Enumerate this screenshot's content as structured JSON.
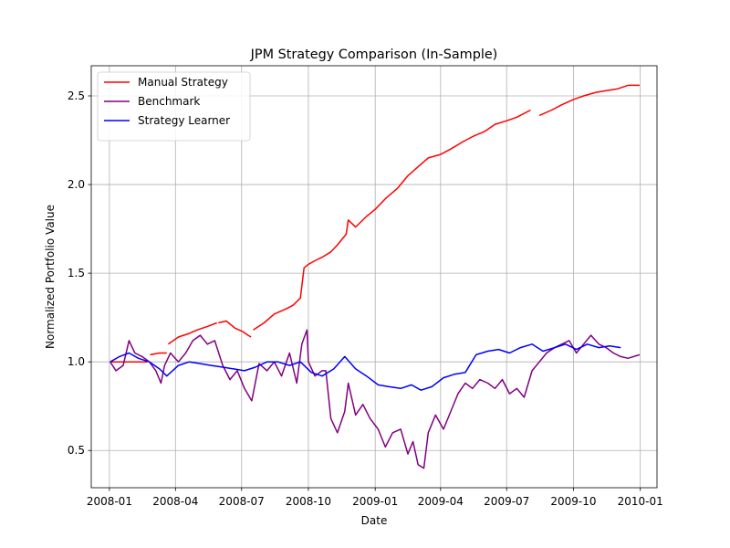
{
  "chart_data": {
    "type": "line",
    "title": "JPM Strategy Comparison (In-Sample)",
    "xlabel": "Date",
    "ylabel": "Normalized Portfolio Value",
    "xlim": [
      "2007-12-07",
      "2010-01-24"
    ],
    "ylim": [
      0.29,
      2.67
    ],
    "x_ticks": [
      "2008-01",
      "2008-04",
      "2008-07",
      "2008-10",
      "2009-01",
      "2009-04",
      "2009-07",
      "2009-10",
      "2010-01"
    ],
    "x_tick_dates": [
      "2008-01-01",
      "2008-04-01",
      "2008-07-01",
      "2008-10-01",
      "2009-01-01",
      "2009-04-01",
      "2009-07-01",
      "2009-10-01",
      "2010-01-01"
    ],
    "y_ticks": [
      0.5,
      1.0,
      1.5,
      2.0,
      2.5
    ],
    "grid": true,
    "legend_position": "top-left",
    "series": [
      {
        "name": "Manual Strategy",
        "color": "#ff0000",
        "segments": [
          {
            "x": [
              "2008-01-02",
              "2008-01-20",
              "2008-02-05",
              "2008-02-22"
            ],
            "y": [
              1.0,
              1.0,
              1.0,
              1.0
            ]
          },
          {
            "x": [
              "2008-02-26",
              "2008-03-10",
              "2008-03-20"
            ],
            "y": [
              1.04,
              1.05,
              1.05
            ]
          },
          {
            "x": [
              "2008-03-22",
              "2008-04-05",
              "2008-04-20",
              "2008-05-01",
              "2008-05-15",
              "2008-05-28"
            ],
            "y": [
              1.1,
              1.14,
              1.16,
              1.18,
              1.2,
              1.22
            ]
          },
          {
            "x": [
              "2008-05-30",
              "2008-06-10",
              "2008-06-22",
              "2008-07-03",
              "2008-07-10",
              "2008-07-14"
            ],
            "y": [
              1.22,
              1.23,
              1.19,
              1.17,
              1.15,
              1.14
            ]
          },
          {
            "x": [
              "2008-07-17",
              "2008-08-01",
              "2008-08-15",
              "2008-09-01",
              "2008-09-10",
              "2008-09-20",
              "2008-09-25",
              "2008-10-01",
              "2008-10-10",
              "2008-10-20",
              "2008-11-01",
              "2008-11-10",
              "2008-11-22",
              "2008-11-25",
              "2008-12-05",
              "2008-12-20",
              "2009-01-01",
              "2009-01-15",
              "2009-02-01",
              "2009-02-15",
              "2009-03-01",
              "2009-03-15",
              "2009-04-01",
              "2009-04-15",
              "2009-05-01",
              "2009-05-15",
              "2009-06-01",
              "2009-06-15",
              "2009-07-01",
              "2009-07-15",
              "2009-08-03"
            ],
            "y": [
              1.18,
              1.22,
              1.27,
              1.3,
              1.32,
              1.36,
              1.53,
              1.55,
              1.57,
              1.59,
              1.62,
              1.66,
              1.72,
              1.8,
              1.76,
              1.82,
              1.86,
              1.92,
              1.98,
              2.05,
              2.1,
              2.15,
              2.17,
              2.2,
              2.24,
              2.27,
              2.3,
              2.34,
              2.36,
              2.38,
              2.42
            ]
          },
          {
            "x": [
              "2009-08-15",
              "2009-09-01",
              "2009-09-15",
              "2009-10-01",
              "2009-10-15",
              "2009-11-01",
              "2009-11-15",
              "2009-12-01",
              "2009-12-15",
              "2009-12-31"
            ],
            "y": [
              2.39,
              2.42,
              2.45,
              2.48,
              2.5,
              2.52,
              2.53,
              2.54,
              2.56,
              2.56
            ]
          }
        ]
      },
      {
        "name": "Benchmark",
        "color": "#800080",
        "segments": [
          {
            "x": [
              "2008-01-02",
              "2008-01-10",
              "2008-01-20",
              "2008-01-28",
              "2008-02-05",
              "2008-02-15",
              "2008-02-25",
              "2008-03-05",
              "2008-03-12",
              "2008-03-17",
              "2008-03-25",
              "2008-04-05",
              "2008-04-15",
              "2008-04-25",
              "2008-05-05",
              "2008-05-15",
              "2008-05-25",
              "2008-06-05",
              "2008-06-15",
              "2008-06-25",
              "2008-07-05",
              "2008-07-15",
              "2008-07-25",
              "2008-08-05",
              "2008-08-15",
              "2008-08-25",
              "2008-09-05",
              "2008-09-15",
              "2008-09-22",
              "2008-09-29",
              "2008-10-01",
              "2008-10-10",
              "2008-10-20",
              "2008-10-25",
              "2008-11-01",
              "2008-11-10",
              "2008-11-20",
              "2008-11-25",
              "2008-12-05",
              "2008-12-15",
              "2008-12-25",
              "2009-01-05",
              "2009-01-15",
              "2009-01-25",
              "2009-02-05",
              "2009-02-15",
              "2009-02-22",
              "2009-03-01",
              "2009-03-09",
              "2009-03-15",
              "2009-03-25",
              "2009-04-05",
              "2009-04-15",
              "2009-04-25",
              "2009-05-05",
              "2009-05-15",
              "2009-05-25",
              "2009-06-05",
              "2009-06-15",
              "2009-06-25",
              "2009-07-05",
              "2009-07-15",
              "2009-07-25",
              "2009-08-05",
              "2009-08-15",
              "2009-08-25",
              "2009-09-05",
              "2009-09-15",
              "2009-09-25",
              "2009-10-05",
              "2009-10-15",
              "2009-10-25",
              "2009-11-05",
              "2009-11-15",
              "2009-11-25",
              "2009-12-05",
              "2009-12-15",
              "2009-12-31"
            ],
            "y": [
              1.0,
              0.95,
              0.98,
              1.12,
              1.05,
              1.03,
              1.0,
              0.95,
              0.88,
              0.98,
              1.05,
              1.0,
              1.05,
              1.12,
              1.15,
              1.1,
              1.12,
              0.98,
              0.9,
              0.95,
              0.85,
              0.78,
              0.99,
              0.95,
              1.0,
              0.92,
              1.05,
              0.88,
              1.1,
              1.18,
              1.0,
              0.92,
              0.95,
              0.95,
              0.68,
              0.6,
              0.72,
              0.88,
              0.7,
              0.76,
              0.68,
              0.62,
              0.52,
              0.6,
              0.62,
              0.48,
              0.55,
              0.42,
              0.4,
              0.6,
              0.7,
              0.62,
              0.72,
              0.82,
              0.88,
              0.85,
              0.9,
              0.88,
              0.85,
              0.9,
              0.82,
              0.85,
              0.8,
              0.95,
              1.0,
              1.05,
              1.08,
              1.1,
              1.12,
              1.05,
              1.1,
              1.15,
              1.1,
              1.08,
              1.05,
              1.03,
              1.02,
              1.04
            ]
          }
        ]
      },
      {
        "name": "Strategy Learner",
        "color": "#0000ff",
        "segments": [
          {
            "x": [
              "2008-01-02",
              "2008-01-15",
              "2008-01-28",
              "2008-02-10",
              "2008-02-25",
              "2008-03-10",
              "2008-03-20",
              "2008-04-05",
              "2008-04-20",
              "2008-05-05",
              "2008-05-20",
              "2008-06-05",
              "2008-06-20",
              "2008-07-05",
              "2008-07-20",
              "2008-08-05",
              "2008-08-20",
              "2008-09-05",
              "2008-09-20",
              "2008-10-05",
              "2008-10-20",
              "2008-11-05",
              "2008-11-20",
              "2008-12-05",
              "2008-12-20",
              "2009-01-05",
              "2009-01-20",
              "2009-02-05",
              "2009-02-20",
              "2009-03-05",
              "2009-03-20",
              "2009-04-05",
              "2009-04-20",
              "2009-05-05",
              "2009-05-20",
              "2009-06-05",
              "2009-06-20",
              "2009-07-05",
              "2009-07-20",
              "2009-08-05",
              "2009-08-20",
              "2009-09-05",
              "2009-09-20",
              "2009-10-05",
              "2009-10-20",
              "2009-11-05",
              "2009-11-20",
              "2009-12-05"
            ],
            "y": [
              1.0,
              1.03,
              1.05,
              1.02,
              1.0,
              0.96,
              0.92,
              0.98,
              1.0,
              0.99,
              0.98,
              0.97,
              0.96,
              0.95,
              0.97,
              1.0,
              1.0,
              0.98,
              1.0,
              0.94,
              0.92,
              0.96,
              1.03,
              0.96,
              0.92,
              0.87,
              0.86,
              0.85,
              0.87,
              0.84,
              0.86,
              0.91,
              0.93,
              0.94,
              1.04,
              1.06,
              1.07,
              1.05,
              1.08,
              1.1,
              1.06,
              1.08,
              1.1,
              1.07,
              1.1,
              1.08,
              1.09,
              1.08
            ]
          }
        ]
      }
    ]
  }
}
